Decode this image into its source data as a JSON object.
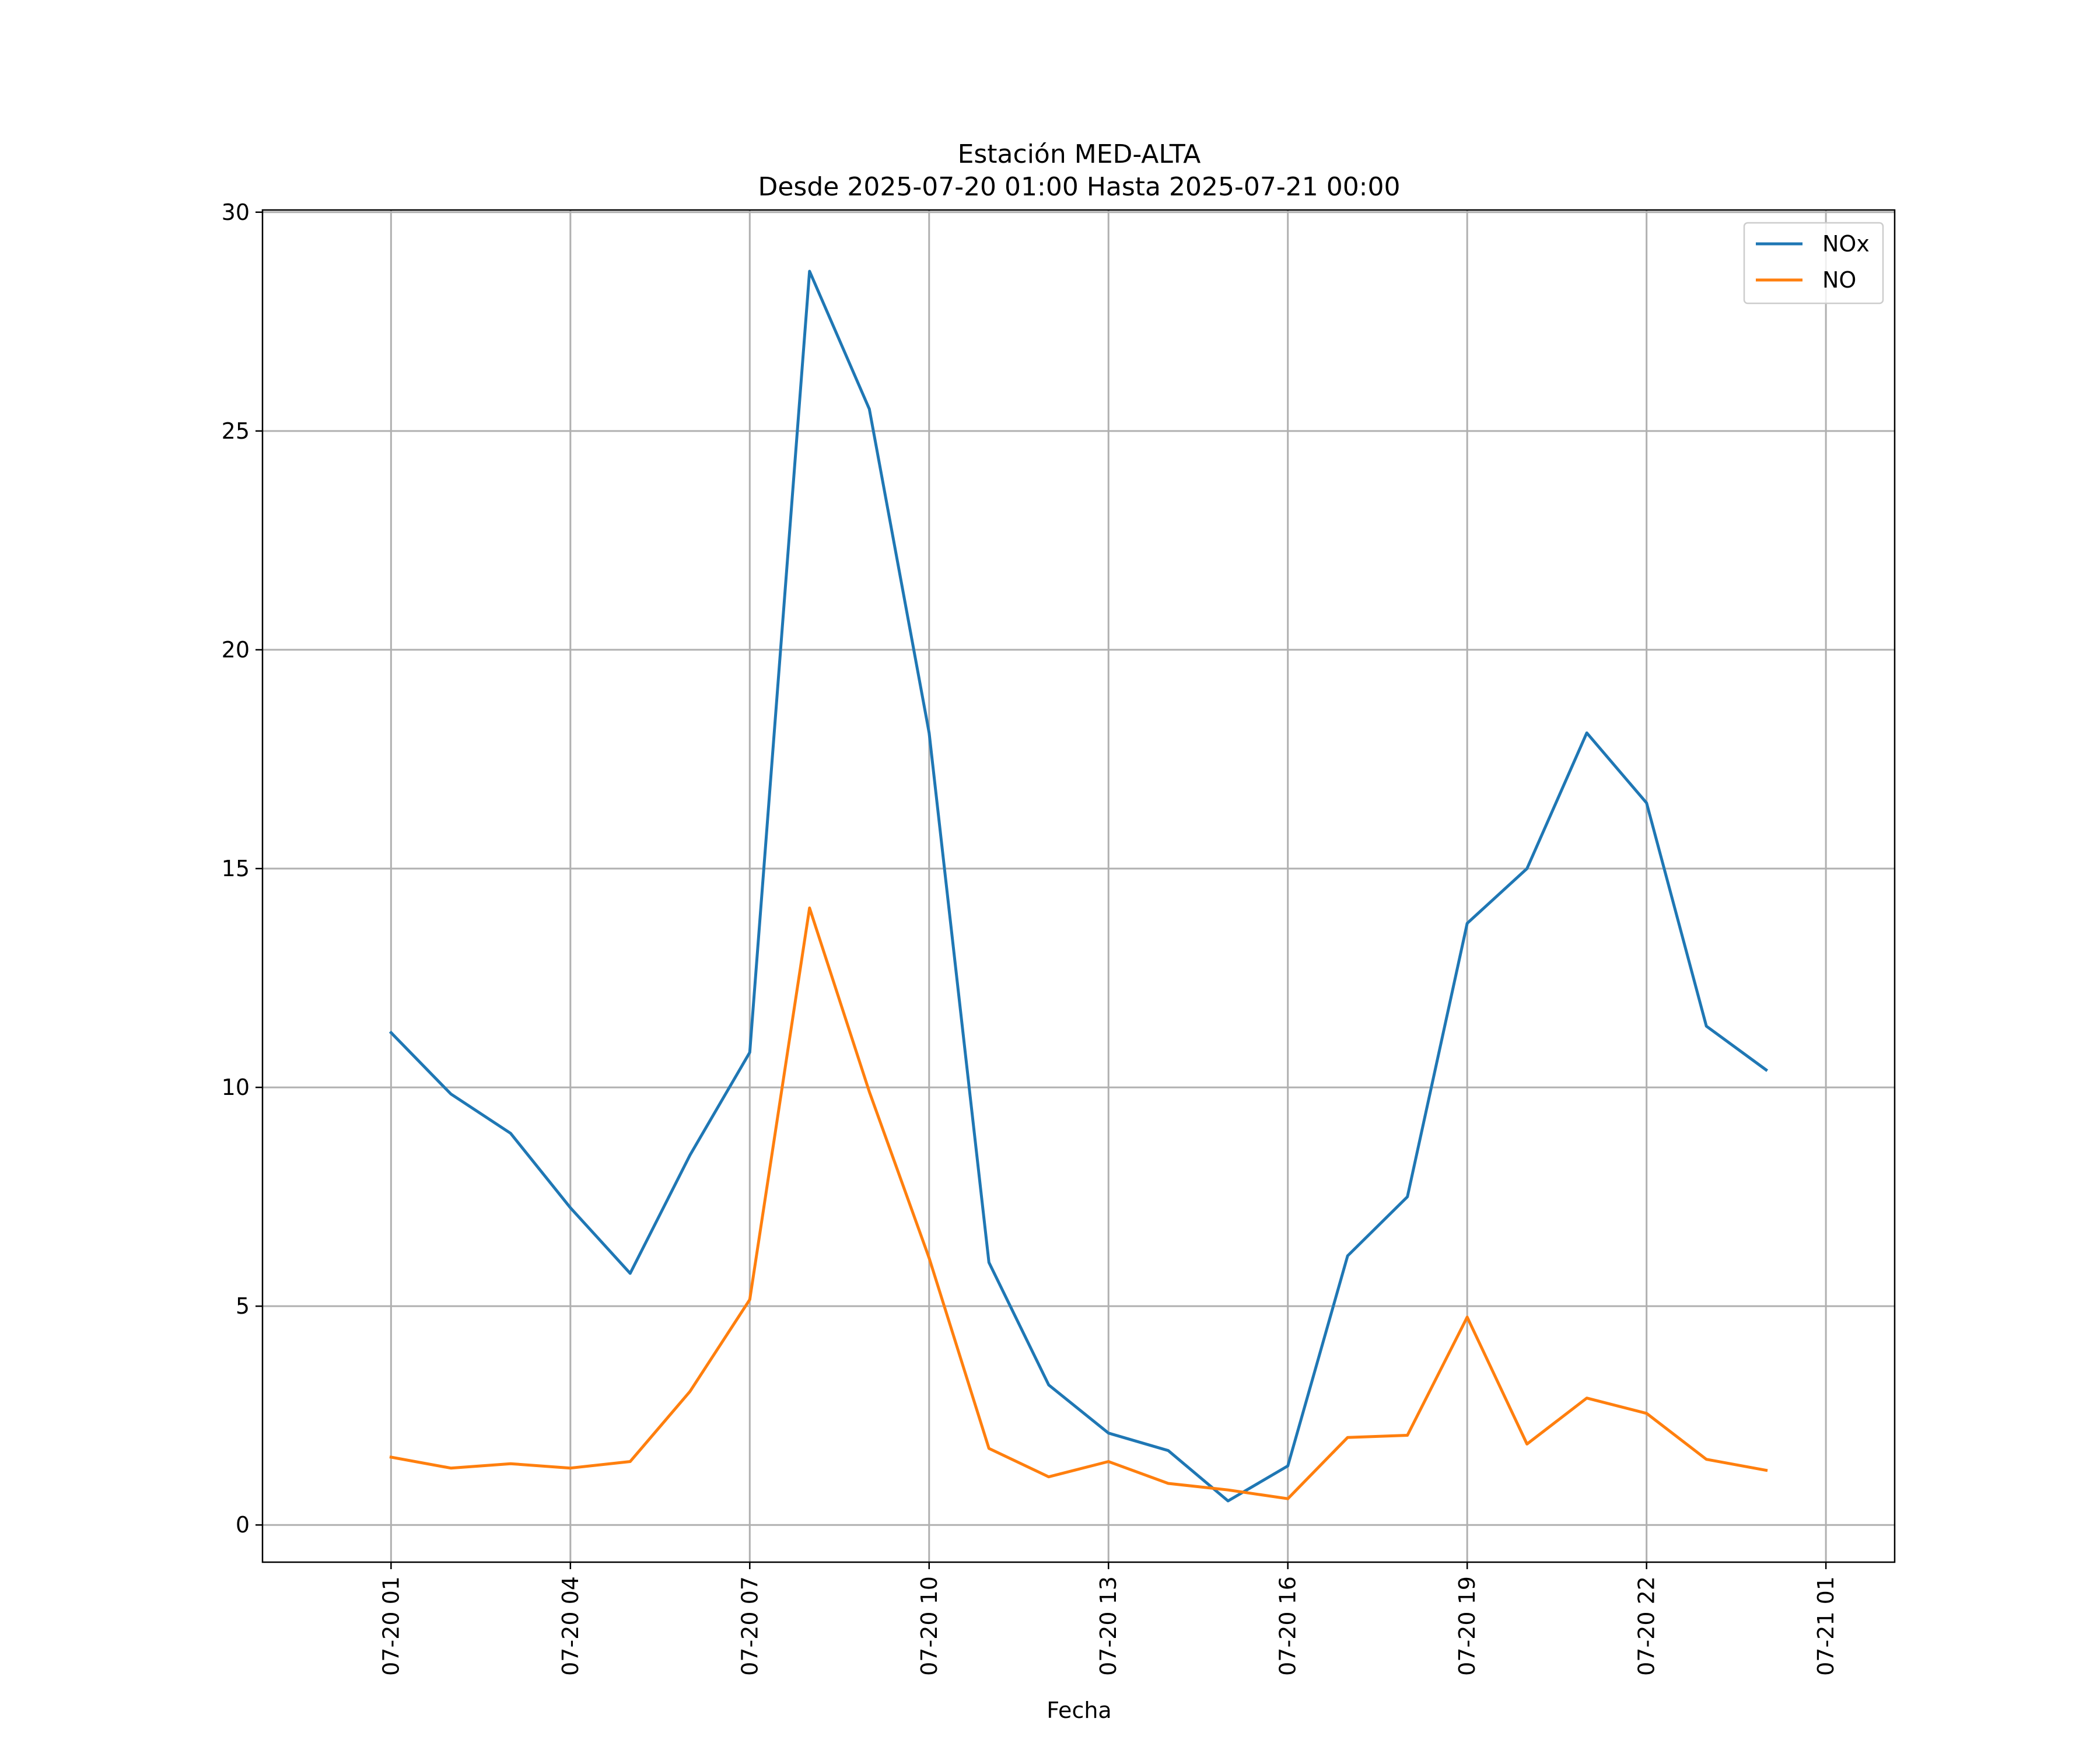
{
  "chart_data": {
    "type": "line",
    "title": "Estación MED-ALTA",
    "subtitle": "Desde 2025-07-20 01:00 Hasta 2025-07-21 00:00",
    "xlabel": "Fecha",
    "ylabel": "",
    "x": [
      "2025-07-20 01:00",
      "2025-07-20 02:00",
      "2025-07-20 03:00",
      "2025-07-20 04:00",
      "2025-07-20 05:00",
      "2025-07-20 06:00",
      "2025-07-20 07:00",
      "2025-07-20 08:00",
      "2025-07-20 09:00",
      "2025-07-20 10:00",
      "2025-07-20 11:00",
      "2025-07-20 12:00",
      "2025-07-20 13:00",
      "2025-07-20 14:00",
      "2025-07-20 15:00",
      "2025-07-20 16:00",
      "2025-07-20 17:00",
      "2025-07-20 18:00",
      "2025-07-20 19:00",
      "2025-07-20 20:00",
      "2025-07-20 21:00",
      "2025-07-20 22:00",
      "2025-07-20 23:00",
      "2025-07-21 00:00"
    ],
    "series": [
      {
        "name": "NOx",
        "color": "#1f77b4",
        "values": [
          11.25,
          9.85,
          8.95,
          7.25,
          5.75,
          8.45,
          10.8,
          28.65,
          25.5,
          18.1,
          6.0,
          3.2,
          2.1,
          1.7,
          0.55,
          1.35,
          6.15,
          7.5,
          13.75,
          15.0,
          18.1,
          16.5,
          11.4,
          10.4
        ]
      },
      {
        "name": "NO",
        "color": "#ff7f0e",
        "values": [
          1.55,
          1.3,
          1.4,
          1.3,
          1.45,
          3.05,
          5.15,
          14.1,
          9.9,
          6.1,
          1.75,
          1.1,
          1.45,
          0.95,
          0.8,
          0.6,
          2.0,
          2.05,
          4.75,
          1.85,
          2.9,
          2.55,
          1.5,
          1.25
        ]
      }
    ],
    "xticks": [
      "07-20 01",
      "07-20 04",
      "07-20 07",
      "07-20 10",
      "07-20 13",
      "07-20 16",
      "07-20 19",
      "07-20 22",
      "07-21 01"
    ],
    "yticks": [
      "0",
      "5",
      "10",
      "15",
      "20",
      "25",
      "30"
    ],
    "ylim": [
      -0.85,
      30.05
    ],
    "xlim": [
      "2025-07-19 22:51",
      "2025-07-21 02:09"
    ],
    "grid": true,
    "legend": {
      "position": "top-right",
      "entries": [
        "NOx",
        "NO"
      ]
    }
  }
}
